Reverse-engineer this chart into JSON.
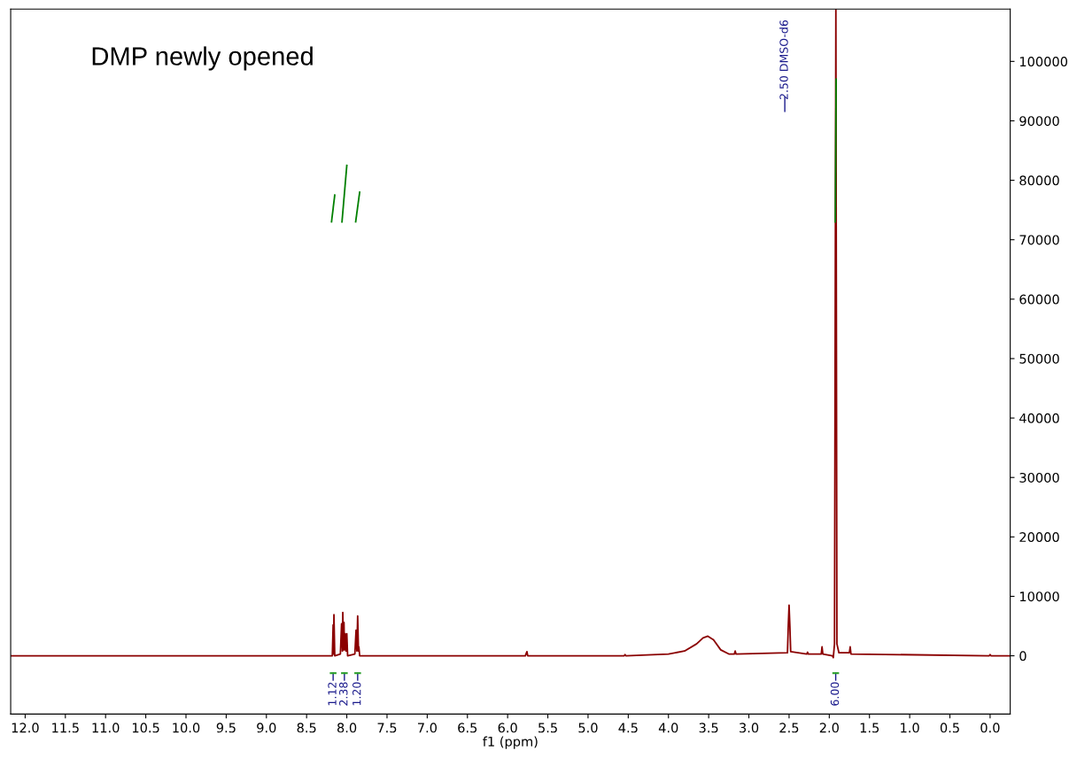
{
  "chart_data": {
    "type": "line",
    "title": "DMP newly opened",
    "xlabel": "f1 (ppm)",
    "xlim": [
      12.18,
      -0.25
    ],
    "ylim": [
      -9800,
      108800
    ],
    "xticks": [
      {
        "value": 12,
        "label": "12.0"
      },
      {
        "value": 11.5,
        "label": "11.5"
      },
      {
        "value": 11,
        "label": "11.0"
      },
      {
        "value": 10.5,
        "label": "10.5"
      },
      {
        "value": 10,
        "label": "10.0"
      },
      {
        "value": 9.5,
        "label": "9.5"
      },
      {
        "value": 9,
        "label": "9.0"
      },
      {
        "value": 8.5,
        "label": "8.5"
      },
      {
        "value": 8,
        "label": "8.0"
      },
      {
        "value": 7.5,
        "label": "7.5"
      },
      {
        "value": 7,
        "label": "7.0"
      },
      {
        "value": 6.5,
        "label": "6.5"
      },
      {
        "value": 6,
        "label": "6.0"
      },
      {
        "value": 5.5,
        "label": "5.5"
      },
      {
        "value": 5,
        "label": "5.0"
      },
      {
        "value": 4.5,
        "label": "4.5"
      },
      {
        "value": 4,
        "label": "4.0"
      },
      {
        "value": 3.5,
        "label": "3.5"
      },
      {
        "value": 3,
        "label": "3.0"
      },
      {
        "value": 2.5,
        "label": "2.5"
      },
      {
        "value": 2,
        "label": "2.0"
      },
      {
        "value": 1.5,
        "label": "1.5"
      },
      {
        "value": 1,
        "label": "1.0"
      },
      {
        "value": 0.5,
        "label": "0.5"
      },
      {
        "value": 0,
        "label": "0.0"
      }
    ],
    "yticks": [
      0,
      10000,
      20000,
      30000,
      40000,
      50000,
      60000,
      70000,
      80000,
      90000,
      100000
    ],
    "grid": false,
    "legend": false,
    "marker": "none",
    "line_style": "solid",
    "series": [
      {
        "color": "#8b0000",
        "x": [
          12.18,
          8.25,
          8.18,
          8.17,
          8.165,
          8.16,
          8.15,
          8.08,
          8.065,
          8.055,
          8.05,
          8.04,
          8.035,
          8.03,
          8.02,
          8.01,
          8.0,
          7.99,
          7.9,
          7.885,
          7.875,
          7.865,
          7.855,
          7.85,
          7.84,
          5.78,
          5.76,
          5.75,
          4.55,
          4.54,
          4.53,
          4.0,
          3.8,
          3.65,
          3.57,
          3.51,
          3.44,
          3.35,
          3.25,
          3.18,
          3.17,
          3.16,
          2.52,
          2.51,
          2.5,
          2.49,
          2.48,
          2.28,
          2.27,
          2.26,
          2.1,
          2.09,
          2.08,
          1.96,
          1.95,
          1.935,
          1.918,
          1.905,
          1.88,
          1.75,
          1.74,
          1.73,
          0.01,
          0.0,
          -0.01,
          -0.25
        ],
        "values": [
          0,
          0,
          0,
          5200,
          300,
          6900,
          0,
          300,
          5400,
          800,
          7300,
          1000,
          5600,
          1000,
          3700,
          800,
          3700,
          0,
          300,
          4300,
          800,
          6700,
          800,
          1500,
          0,
          0,
          700,
          0,
          0,
          200,
          0,
          300,
          800,
          2000,
          3000,
          3300,
          2700,
          1000,
          300,
          300,
          800,
          300,
          500,
          5000,
          8500,
          5000,
          700,
          300,
          600,
          300,
          300,
          1500,
          300,
          0,
          -300,
          2000,
          108800,
          2000,
          500,
          500,
          1500,
          300,
          0,
          200,
          0,
          0
        ]
      },
      {
        "color": "#008000",
        "x": [
          8.19,
          8.15
        ],
        "values": [
          73000,
          77500
        ]
      },
      {
        "color": "#008000",
        "x": [
          8.06,
          8.0
        ],
        "values": [
          73000,
          82500
        ]
      },
      {
        "color": "#008000",
        "x": [
          7.89,
          7.84
        ],
        "values": [
          73000,
          78000
        ]
      },
      {
        "color": "#008000",
        "x": [
          1.925,
          1.915
        ],
        "values": [
          73000,
          97000
        ]
      }
    ],
    "annotations": [
      "2.50 DMSO-d6",
      "1.12",
      "2.38",
      "1.20",
      "6.00"
    ]
  }
}
